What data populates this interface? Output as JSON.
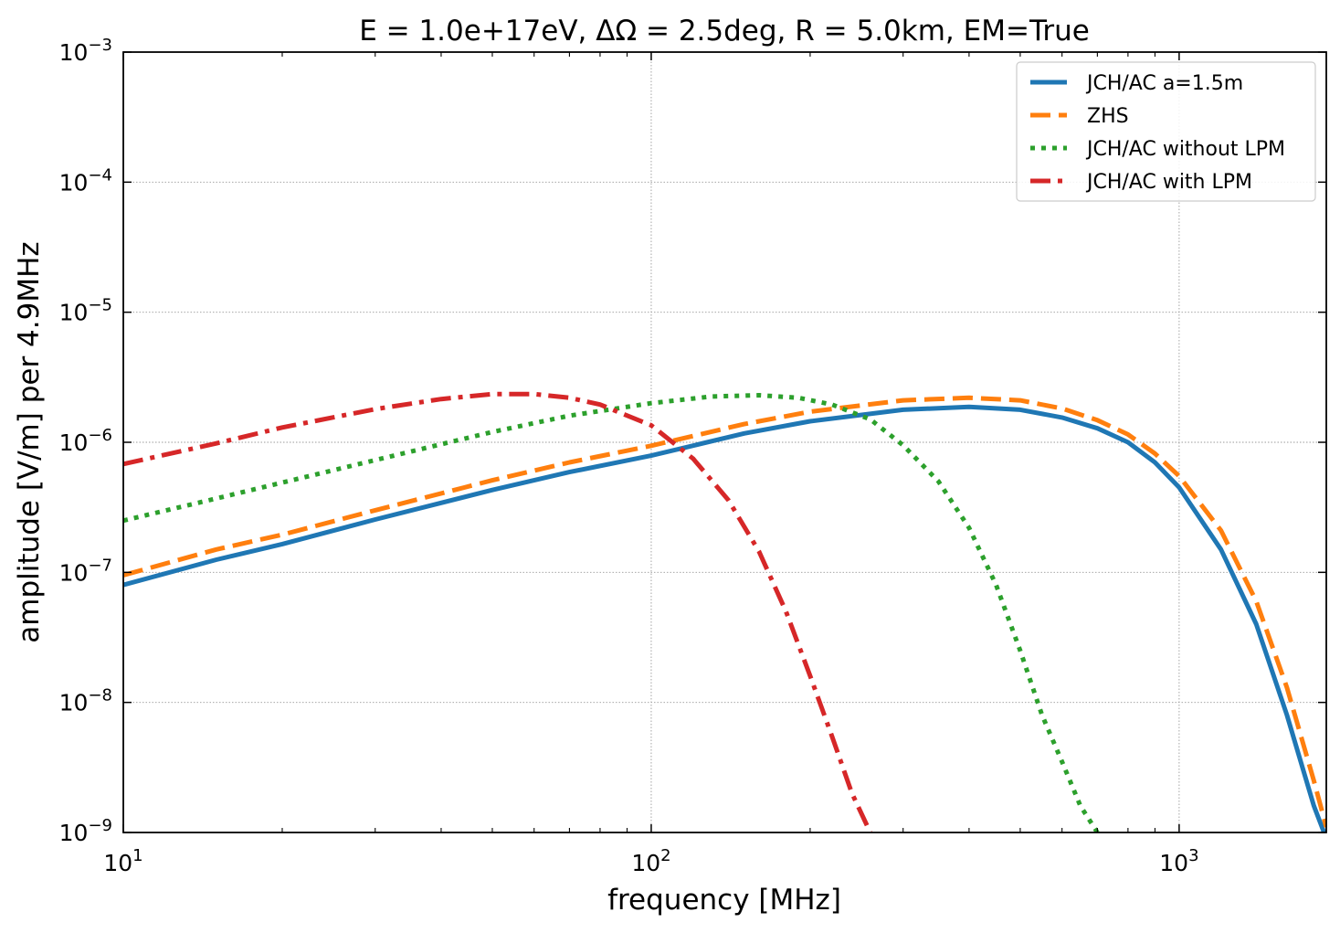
{
  "chart_data": {
    "type": "line",
    "title": "E = 1.0e+17eV, ΔΩ = 2.5deg, R = 5.0km, EM=True",
    "xlabel": "frequency [MHz]",
    "ylabel": "amplitude [V/m] per 4.9MHz",
    "xscale": "log",
    "yscale": "log",
    "xlim": [
      10,
      1900
    ],
    "ylim": [
      1e-09,
      0.001
    ],
    "grid": true,
    "legend_position": "top-right",
    "x_tick_labels": [
      {
        "value": 10,
        "base": "10",
        "exp": "1"
      },
      {
        "value": 100,
        "base": "10",
        "exp": "2"
      },
      {
        "value": 1000,
        "base": "10",
        "exp": "3"
      }
    ],
    "y_tick_labels": [
      {
        "value": 0.001,
        "base": "10",
        "exp": "−3"
      },
      {
        "value": 0.0001,
        "base": "10",
        "exp": "−4"
      },
      {
        "value": 1e-05,
        "base": "10",
        "exp": "−5"
      },
      {
        "value": 1e-06,
        "base": "10",
        "exp": "−6"
      },
      {
        "value": 1e-07,
        "base": "10",
        "exp": "−7"
      },
      {
        "value": 1e-08,
        "base": "10",
        "exp": "−8"
      },
      {
        "value": 1e-09,
        "base": "10",
        "exp": "−9"
      }
    ],
    "series": [
      {
        "name": "JCH/AC a=1.5m",
        "color": "#1f77b4",
        "style": "solid",
        "x": [
          10,
          15,
          20,
          30,
          50,
          70,
          100,
          150,
          200,
          300,
          400,
          500,
          600,
          700,
          800,
          900,
          1000,
          1200,
          1400,
          1600,
          1800,
          1900
        ],
        "y": [
          8e-08,
          1.25e-07,
          1.65e-07,
          2.55e-07,
          4.3e-07,
          5.9e-07,
          7.9e-07,
          1.17e-06,
          1.45e-06,
          1.78e-06,
          1.87e-06,
          1.78e-06,
          1.55e-06,
          1.28e-06,
          1e-06,
          7e-07,
          4.5e-07,
          1.5e-07,
          4e-08,
          8e-09,
          1.6e-09,
          9e-10
        ]
      },
      {
        "name": "ZHS",
        "color": "#ff7f0e",
        "style": "dashed",
        "x": [
          10,
          15,
          20,
          30,
          50,
          70,
          100,
          150,
          200,
          300,
          400,
          500,
          600,
          700,
          800,
          900,
          1000,
          1200,
          1400,
          1600,
          1800,
          1900
        ],
        "y": [
          9.5e-08,
          1.5e-07,
          1.95e-07,
          3e-07,
          5.1e-07,
          7e-07,
          9.4e-07,
          1.38e-06,
          1.72e-06,
          2.1e-06,
          2.2e-06,
          2.1e-06,
          1.82e-06,
          1.48e-06,
          1.15e-06,
          8.2e-07,
          5.5e-07,
          2.1e-07,
          6e-08,
          1.3e-08,
          2.5e-09,
          1.1e-09
        ]
      },
      {
        "name": "JCH/AC without LPM",
        "color": "#2ca02c",
        "style": "dotted",
        "x": [
          10,
          15,
          20,
          30,
          50,
          70,
          100,
          130,
          160,
          190,
          220,
          260,
          300,
          350,
          400,
          450,
          500,
          550,
          600,
          650,
          700
        ],
        "y": [
          2.5e-07,
          3.7e-07,
          4.9e-07,
          7.3e-07,
          1.2e-06,
          1.6e-06,
          2e-06,
          2.25e-06,
          2.3e-06,
          2.2e-06,
          1.95e-06,
          1.5e-06,
          9.5e-07,
          5e-07,
          2.2e-07,
          8e-08,
          2.5e-08,
          8e-09,
          3.5e-09,
          1.6e-09,
          1e-09
        ]
      },
      {
        "name": "JCH/AC with LPM",
        "color": "#d62728",
        "style": "dashdot",
        "x": [
          10,
          15,
          20,
          30,
          40,
          50,
          60,
          70,
          80,
          100,
          120,
          140,
          160,
          180,
          200,
          220,
          240,
          260
        ],
        "y": [
          6.8e-07,
          9.8e-07,
          1.3e-06,
          1.8e-06,
          2.15e-06,
          2.35e-06,
          2.35e-06,
          2.2e-06,
          1.95e-06,
          1.35e-06,
          7.5e-07,
          3.6e-07,
          1.45e-07,
          5e-08,
          1.6e-08,
          5.5e-09,
          2e-09,
          1e-09
        ]
      }
    ]
  }
}
